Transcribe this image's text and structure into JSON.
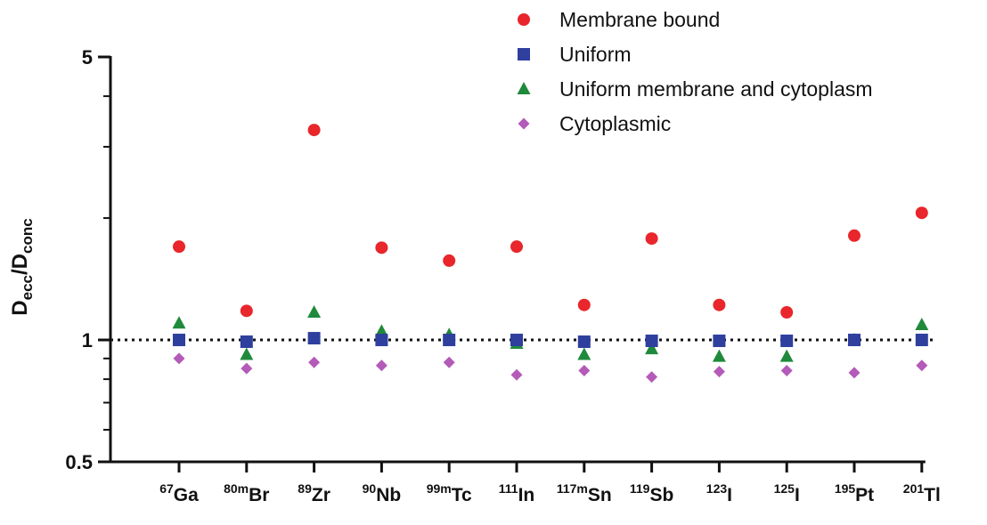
{
  "chart_data": {
    "type": "scatter",
    "ylabel": {
      "main": "D",
      "sub1": "ecc",
      "slash": "/D",
      "sub2": "conc"
    },
    "yscale": "log",
    "ylim": [
      0.5,
      5
    ],
    "yticks": [
      0.5,
      1,
      5
    ],
    "ytick_labels": [
      "0.5",
      "1",
      "5"
    ],
    "reference_line": {
      "y": 1,
      "style": "dotted"
    },
    "categories": [
      {
        "sup": "67",
        "sym": "Ga"
      },
      {
        "sup": "80m",
        "sym": "Br"
      },
      {
        "sup": "89",
        "sym": "Zr"
      },
      {
        "sup": "90",
        "sym": "Nb"
      },
      {
        "sup": "99m",
        "sym": "Tc"
      },
      {
        "sup": "111",
        "sym": "In"
      },
      {
        "sup": "117m",
        "sym": "Sn"
      },
      {
        "sup": "119",
        "sym": "Sb"
      },
      {
        "sup": "123",
        "sym": "I"
      },
      {
        "sup": "125",
        "sym": "I"
      },
      {
        "sup": "195",
        "sym": "Pt"
      },
      {
        "sup": "201",
        "sym": "Tl"
      }
    ],
    "series": [
      {
        "name": "Membrane bound",
        "marker": "circle",
        "color": "#e8262b",
        "values": [
          1.7,
          1.18,
          3.3,
          1.69,
          1.57,
          1.7,
          1.22,
          1.78,
          1.22,
          1.17,
          1.81,
          2.06
        ]
      },
      {
        "name": "Uniform",
        "marker": "square",
        "color": "#2e3f9e",
        "values": [
          1.0,
          0.99,
          1.01,
          1.0,
          1.0,
          1.0,
          0.99,
          0.995,
          0.995,
          0.995,
          1.0,
          1.0
        ]
      },
      {
        "name": "Uniform membrane and cytoplasm",
        "marker": "triangle",
        "color": "#1f8a3b",
        "values": [
          1.1,
          0.92,
          1.17,
          1.05,
          1.03,
          0.98,
          0.92,
          0.95,
          0.91,
          0.91,
          1.0,
          1.09
        ]
      },
      {
        "name": "Cytoplasmic",
        "marker": "diamond",
        "color": "#b45ab8",
        "values": [
          0.9,
          0.85,
          0.88,
          0.865,
          0.88,
          0.82,
          0.84,
          0.81,
          0.835,
          0.84,
          0.83,
          0.865
        ]
      }
    ],
    "legend_position": "top-right",
    "grid": false
  }
}
